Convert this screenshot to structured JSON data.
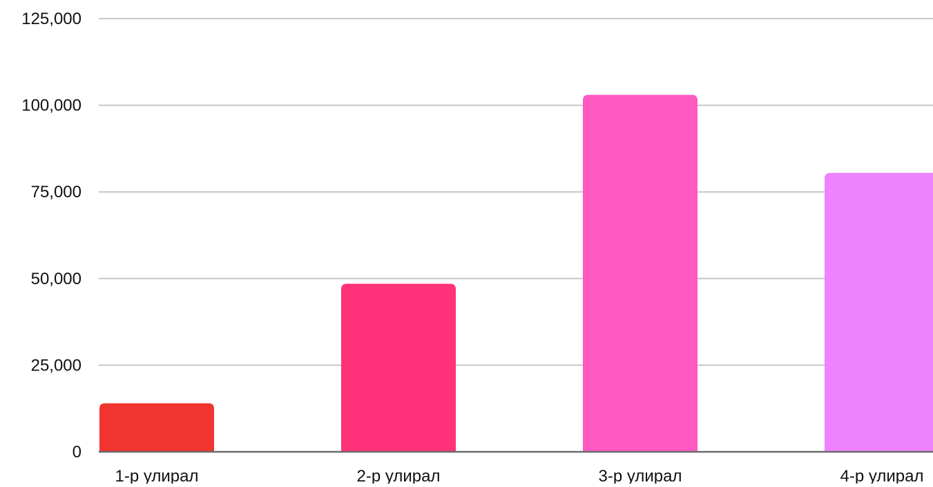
{
  "chart_data": {
    "type": "bar",
    "categories": [
      "1-р улирал",
      "2-р улирал",
      "3-р улирал",
      "4-р улирал"
    ],
    "values": [
      14000,
      48500,
      103000,
      80500
    ],
    "colors": [
      "#f0342f",
      "#ff327a",
      "#ff59c1",
      "#ee82ff"
    ],
    "ylim": [
      0,
      125000
    ],
    "yticks": [
      0,
      25000,
      50000,
      75000,
      100000,
      125000
    ],
    "ytick_labels": [
      "0",
      "25,000",
      "50,000",
      "75,000",
      "100,000",
      "125,000"
    ],
    "grid": true,
    "legend": "none",
    "title": "",
    "xlabel": "",
    "ylabel": ""
  }
}
